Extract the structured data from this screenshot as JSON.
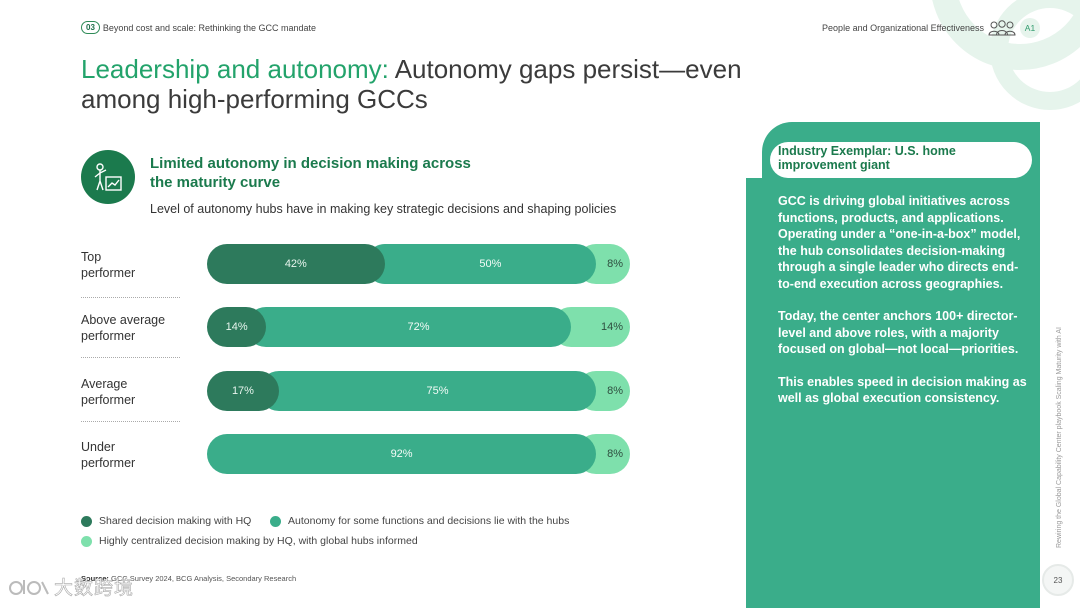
{
  "header": {
    "section_number": "03",
    "section_title": "Beyond cost and scale: Rethinking the GCC mandate",
    "topic": "People and Organizational Effectiveness",
    "topic_icon": "people-group-icon",
    "badge": "A1"
  },
  "title": {
    "highlight": "Leadership and autonomy:",
    "rest": "Autonomy gaps persist—even among high-performing GCCs"
  },
  "chart_section": {
    "icon": "person-chart-icon",
    "heading": "Limited autonomy in decision making across the maturity curve",
    "subtitle": "Level of autonomy hubs have in making key strategic decisions and shaping policies"
  },
  "chart_data": {
    "type": "bar",
    "orientation": "horizontal",
    "stacked": true,
    "unit": "%",
    "categories": [
      "Top performer",
      "Above average performer",
      "Average performer",
      "Under performer"
    ],
    "series": [
      {
        "name": "Shared decision making with HQ",
        "values": [
          42,
          14,
          17,
          null
        ],
        "labels": [
          "42%",
          "14%",
          "17%",
          ""
        ],
        "color": "#2d7a5c"
      },
      {
        "name": "Autonomy for some functions and decisions lie with the hubs",
        "values": [
          50,
          72,
          75,
          92
        ],
        "labels": [
          "50%",
          "72%",
          "75%",
          "92%"
        ],
        "color": "#3aad8a"
      },
      {
        "name": "Highly centralized decision making by HQ, with global hubs informed",
        "values": [
          8,
          14,
          8,
          8
        ],
        "labels": [
          "8%",
          "14%",
          "8%",
          "8%"
        ],
        "color": "#7ee0ac"
      }
    ],
    "xlim": [
      0,
      100
    ],
    "grid": false,
    "legend": "bottom"
  },
  "row_labels": [
    {
      "line1": "Top",
      "line2": "performer"
    },
    {
      "line1": "Above average",
      "line2": "performer"
    },
    {
      "line1": "Average",
      "line2": "performer"
    },
    {
      "line1": "Under",
      "line2": "performer"
    }
  ],
  "source": {
    "label": "Source:",
    "text": "GCC Survey 2024, BCG Analysis, Secondary Research"
  },
  "exemplar": {
    "title": "Industry Exemplar: U.S. home improvement giant",
    "paragraphs": [
      "GCC is driving global initiatives across functions, products, and applications. Operating under a “one-in-a-box” model, the hub consolidates decision-making through a single leader who directs end-to-end execution across geographies.",
      "Today, the center anchors 100+ director-level and above roles, with a majority focused on global—not local—priorities.",
      "This enables speed in decision making as well as global execution consistency."
    ]
  },
  "side_note": "Rewiring the Global Capability Center playbook Scaling Maturity with AI",
  "page_number": "23",
  "watermark": "大数跨境",
  "colors": {
    "brand_dark": "#1b7a4d",
    "brand_accent": "#23a36b",
    "panel": "#3aad8a"
  }
}
